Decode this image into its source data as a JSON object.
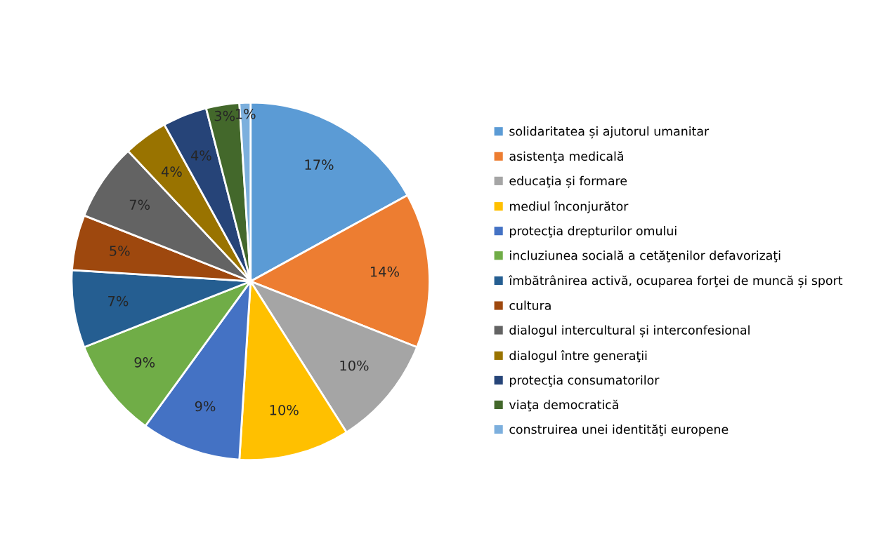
{
  "chart_data": {
    "type": "pie",
    "legend": "right",
    "categories": [
      "solidaritatea și ajutorul umanitar",
      "asistenţa medicală",
      "educaţia și formare",
      "mediul înconjurător",
      "protecţia drepturilor omului",
      "incluziunea socială a cetăţenilor defavorizaţi",
      "îmbătrânirea activă, ocuparea forţei de muncă și sport",
      "cultura",
      "dialogul intercultural și interconfesional",
      "dialogul între generaţii",
      "protecţia consumatorilor",
      "viaţa democratică",
      "construirea unei identităţi europene"
    ],
    "values": [
      17,
      14,
      10,
      10,
      9,
      9,
      7,
      5,
      7,
      4,
      4,
      3,
      1
    ],
    "value_labels": [
      "17%",
      "14%",
      "10%",
      "10%",
      "9%",
      "9%",
      "7%",
      "5%",
      "7%",
      "4%",
      "4%",
      "3%",
      "1%"
    ],
    "colors": [
      "#5b9bd5",
      "#ed7d31",
      "#a5a5a5",
      "#ffc000",
      "#4472c4",
      "#70ad47",
      "#255e91",
      "#9e480e",
      "#636363",
      "#997300",
      "#264478",
      "#43682b",
      "#7cafdd"
    ]
  }
}
